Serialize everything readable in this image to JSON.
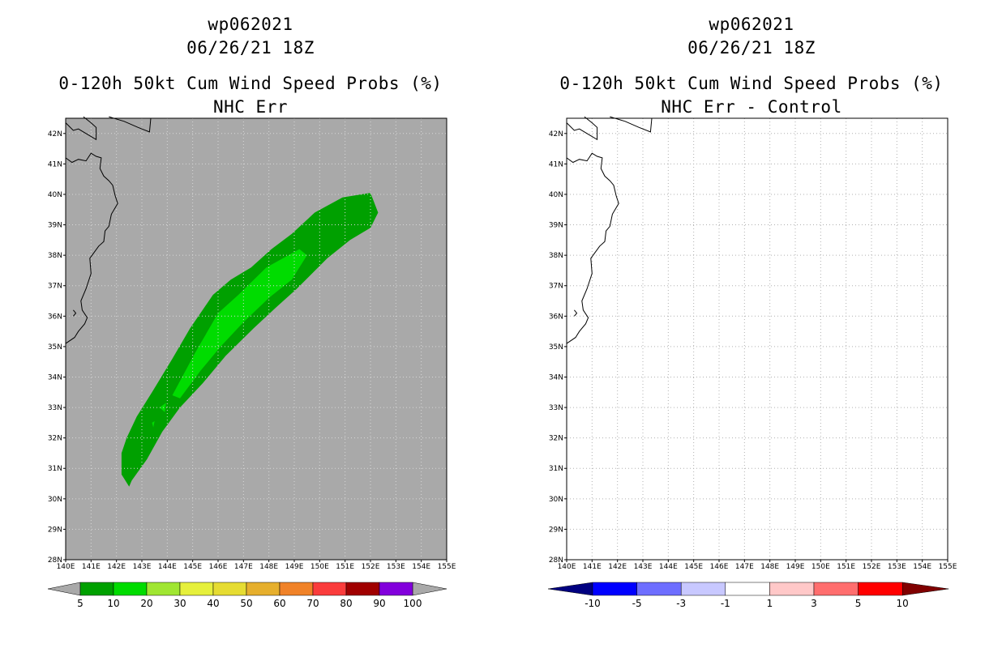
{
  "panels": {
    "left": {
      "storm_id": "wp062021",
      "datetime": "06/26/21 18Z",
      "product": "0-120h 50kt Cum Wind Speed Probs (%)",
      "subtitle": "NHC Err",
      "colorbar_labels": [
        "5",
        "10",
        "20",
        "30",
        "40",
        "50",
        "60",
        "70",
        "80",
        "90",
        "100"
      ],
      "colorbar_colors": [
        "#00a000",
        "#00dc00",
        "#a0e632",
        "#e6f03c",
        "#e6dc32",
        "#e6af2d",
        "#f08228",
        "#fa3c3c",
        "#a00000",
        "#8200dc"
      ],
      "background_color": "#a9a9a9"
    },
    "right": {
      "storm_id": "wp062021",
      "datetime": "06/26/21 18Z",
      "product": "0-120h 50kt Cum Wind Speed Probs (%)",
      "subtitle": "NHC Err - Control",
      "colorbar_labels": [
        "-10",
        "-5",
        "-3",
        "-1",
        "1",
        "3",
        "5",
        "10"
      ],
      "colorbar_colors": [
        "#0000ff",
        "#6e6eff",
        "#c8c8ff",
        "#ffffff",
        "#ffc8c8",
        "#ff6e6e",
        "#ff0000"
      ],
      "left_arrow_color": "#000080",
      "right_arrow_color": "#800000"
    }
  },
  "axes": {
    "lon_labels": [
      "140E",
      "141E",
      "142E",
      "143E",
      "144E",
      "145E",
      "146E",
      "147E",
      "148E",
      "149E",
      "150E",
      "151E",
      "152E",
      "153E",
      "154E",
      "155E"
    ],
    "lat_labels": [
      "28N",
      "29N",
      "30N",
      "31N",
      "32N",
      "33N",
      "34N",
      "35N",
      "36N",
      "37N",
      "38N",
      "39N",
      "40N",
      "41N",
      "42N"
    ],
    "lon_range": [
      140,
      155
    ],
    "lat_range": [
      28,
      42.5
    ]
  },
  "probability_contours": {
    "level_5_color": "#00a000",
    "level_10_color": "#00dc00",
    "level_5": [
      [
        142.5,
        30.4
      ],
      [
        142.2,
        30.8
      ],
      [
        142.2,
        31.5
      ],
      [
        142.4,
        32.0
      ],
      [
        142.8,
        32.7
      ],
      [
        143.4,
        33.5
      ],
      [
        144.2,
        34.6
      ],
      [
        144.9,
        35.6
      ],
      [
        145.8,
        36.7
      ],
      [
        146.5,
        37.2
      ],
      [
        147.3,
        37.6
      ],
      [
        148.1,
        38.2
      ],
      [
        148.9,
        38.7
      ],
      [
        149.8,
        39.4
      ],
      [
        150.9,
        39.9
      ],
      [
        152.0,
        40.05
      ],
      [
        152.3,
        39.4
      ],
      [
        152.0,
        38.9
      ],
      [
        151.2,
        38.5
      ],
      [
        150.3,
        37.9
      ],
      [
        149.1,
        36.9
      ],
      [
        148.3,
        36.3
      ],
      [
        147.4,
        35.6
      ],
      [
        146.3,
        34.7
      ],
      [
        145.4,
        33.8
      ],
      [
        144.5,
        33.0
      ],
      [
        143.8,
        32.2
      ],
      [
        143.2,
        31.3
      ],
      [
        142.6,
        30.6
      ]
    ],
    "level_10": [
      [
        144.2,
        33.4
      ],
      [
        145.1,
        34.8
      ],
      [
        146.0,
        36.1
      ],
      [
        146.8,
        36.7
      ],
      [
        147.9,
        37.6
      ],
      [
        149.2,
        38.2
      ],
      [
        149.5,
        38.0
      ],
      [
        148.9,
        37.2
      ],
      [
        148.0,
        36.6
      ],
      [
        147.0,
        35.8
      ],
      [
        146.1,
        35.0
      ],
      [
        145.3,
        34.2
      ],
      [
        144.5,
        33.3
      ]
    ]
  }
}
